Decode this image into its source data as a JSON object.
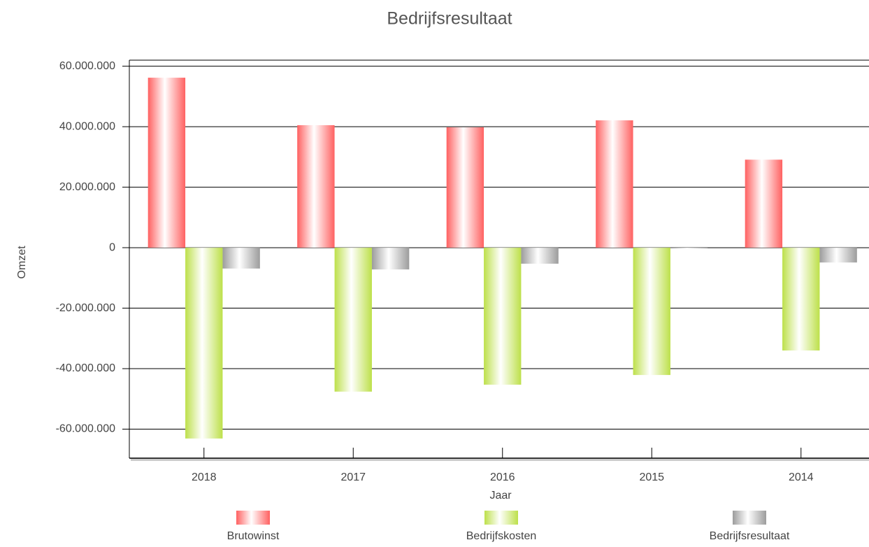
{
  "chart_data": {
    "type": "bar",
    "title": "Bedrijfsresultaat",
    "x_label": "Jaar",
    "y_label": "Omzet",
    "categories": [
      "2018",
      "2017",
      "2016",
      "2015",
      "2014"
    ],
    "series": [
      {
        "name": "Brutowinst",
        "color": "#ff6161",
        "values": [
          56200000,
          40500000,
          39800000,
          42100000,
          29100000
        ]
      },
      {
        "name": "Bedrijfskosten",
        "color": "#bde04a",
        "values": [
          -63100000,
          -47600000,
          -45300000,
          -42100000,
          -34000000
        ]
      },
      {
        "name": "Bedrijfsresultaat",
        "color": "#9c9c9c",
        "values": [
          -6900000,
          -7200000,
          -5300000,
          0,
          -4900000
        ]
      }
    ],
    "ylim": [
      -69600000,
      62000000
    ],
    "yticks": [
      {
        "value": -60000000,
        "label": "-60.000.000"
      },
      {
        "value": -40000000,
        "label": "-40.000.000"
      },
      {
        "value": -20000000,
        "label": "-20.000.000"
      },
      0,
      {
        "value": 20000000,
        "label": "20.000.000"
      },
      {
        "value": 40000000,
        "label": "40.000.000"
      },
      {
        "value": 60000000,
        "label": "60.000.000"
      }
    ],
    "grid": true,
    "legend": "bottom"
  }
}
